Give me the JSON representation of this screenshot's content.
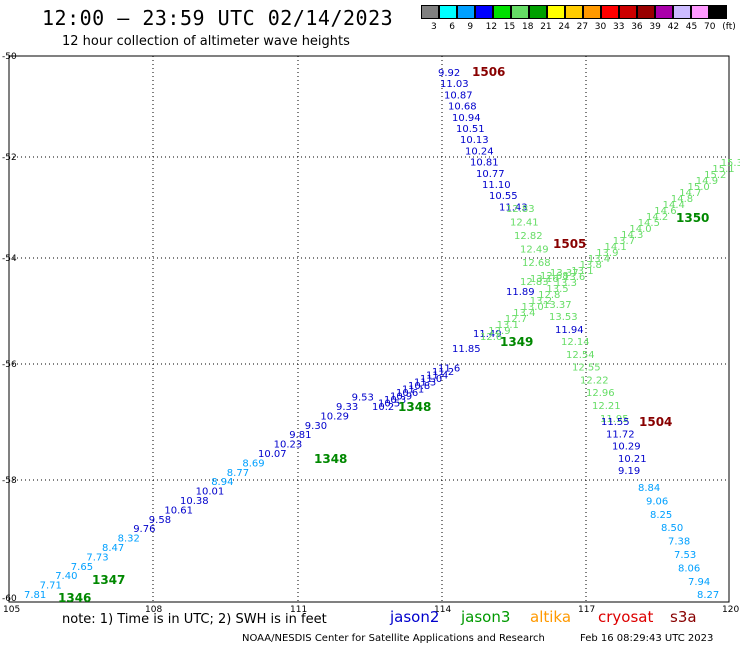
{
  "header": {
    "title": "12:00 — 23:59 UTC 02/14/2023",
    "subtitle": "12 hour collection of altimeter wave heights"
  },
  "legend": {
    "colors": [
      "#808080",
      "#00ffff",
      "#00a0ff",
      "#0000ff",
      "#00e000",
      "#66dd66",
      "#00a000",
      "#ffff00",
      "#ffcc00",
      "#ff9900",
      "#ff0000",
      "#cc0000",
      "#990000",
      "#aa00aa",
      "#ccbbff",
      "#ff99ff",
      "#000000"
    ],
    "labels": [
      "3",
      "6",
      "9",
      "12",
      "15",
      "18",
      "21",
      "24",
      "27",
      "30",
      "33",
      "36",
      "39",
      "42",
      "45",
      "70",
      "(ft)"
    ]
  },
  "axes": {
    "y_ticks": [
      "-50",
      "-52",
      "-54",
      "-56",
      "-58",
      "-60"
    ],
    "x_ticks": [
      "105",
      "108",
      "111",
      "114",
      "117",
      "120"
    ]
  },
  "tracks": [
    {
      "label": "1506",
      "label_color": "#880000",
      "color": "#0000cc",
      "points": [
        {
          "v": "9.92"
        },
        {
          "v": "11.03"
        },
        {
          "v": "10.87"
        },
        {
          "v": "10.68"
        },
        {
          "v": "10.94"
        },
        {
          "v": "10.51"
        },
        {
          "v": "10.13"
        },
        {
          "v": "10.24"
        },
        {
          "v": "10.81"
        },
        {
          "v": "10.77"
        },
        {
          "v": "11.10"
        },
        {
          "v": "10.55"
        },
        {
          "v": "11.43"
        }
      ]
    },
    {
      "color": "#66dd66",
      "points": [
        {
          "v": "12.83"
        },
        {
          "v": "12.41"
        },
        {
          "v": "12.82"
        },
        {
          "v": "12.49"
        },
        {
          "v": "12.68"
        }
      ]
    },
    {
      "label": "1505",
      "label_color": "#880000"
    },
    {
      "color": "#0000cc",
      "points": [
        {
          "v": "11.89"
        }
      ]
    },
    {
      "color": "#66dd66",
      "points": [
        {
          "v": "13.37"
        },
        {
          "v": "13.53"
        }
      ]
    },
    {
      "color": "#0000cc",
      "points": [
        {
          "v": "11.94"
        }
      ]
    },
    {
      "color": "#66dd66",
      "points": [
        {
          "v": "12.14"
        },
        {
          "v": "12.54"
        },
        {
          "v": "12.55"
        },
        {
          "v": "12.22"
        },
        {
          "v": "12.96"
        },
        {
          "v": "12.21"
        },
        {
          "v": "11.95"
        }
      ]
    },
    {
      "label": "1504",
      "label_color": "#880000",
      "color": "#0000cc",
      "points": [
        {
          "v": "11.55"
        },
        {
          "v": "11.72"
        },
        {
          "v": "10.29"
        },
        {
          "v": "10.21"
        },
        {
          "v": "9.19"
        }
      ]
    },
    {
      "color": "#00a0ff",
      "points": [
        {
          "v": "8.84"
        },
        {
          "v": "9.06"
        },
        {
          "v": "8.25"
        },
        {
          "v": "8.50"
        },
        {
          "v": "7.38"
        },
        {
          "v": "7.53"
        },
        {
          "v": "8.06"
        },
        {
          "v": "7.94"
        },
        {
          "v": "8.27"
        }
      ]
    }
  ],
  "diag_track": {
    "labels": [
      "1346",
      "1347",
      "1348",
      "1348",
      "1349",
      "1350"
    ],
    "label_color": "#008800",
    "low_values": [
      "7.81",
      "7.71",
      "7.40",
      "7.65",
      "7.73",
      "8.47",
      "8.32",
      "9.76",
      "9.58",
      "10.61",
      "10.38",
      "10.01",
      "8.94",
      "8.77",
      "8.69",
      "10.07",
      "10.23",
      "9.81",
      "9.30",
      "10.29",
      "9.33",
      "9.53"
    ],
    "mid_values": [
      "11.85",
      "11.49"
    ],
    "high_values": [
      "12.83",
      "13.16",
      "12.68",
      "13.37"
    ]
  },
  "footer": {
    "note": "note:  1) Time is in UTC;  2) SWH is in feet",
    "satellites": [
      {
        "name": "jason2",
        "color": "#0000cc"
      },
      {
        "name": "jason3",
        "color": "#009900"
      },
      {
        "name": "altika",
        "color": "#ff9900"
      },
      {
        "name": "cryosat",
        "color": "#dd0000"
      },
      {
        "name": "s3a",
        "color": "#880000"
      }
    ],
    "credit": "NOAA/NESDIS Center for Satellite Applications and Research",
    "timestamp": "Feb 16 08:29:43 UTC 2023"
  }
}
